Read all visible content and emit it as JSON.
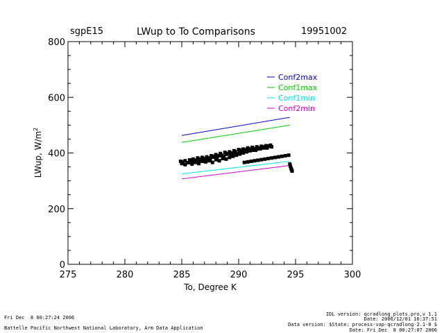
{
  "header": {
    "site": "sgpE15",
    "title": "LWup to To Comparisons",
    "date": "19951002"
  },
  "footer": {
    "left_line1": "Fri Dec  8 00:27:24 2006",
    "left_line2": "Battelle Pacific Northwest National Laboratory, Arm Data Application",
    "right_line1": "IDL version: qcradlong_plots.pro,v 1.1",
    "right_line2": "Date: 2006/12/01 16:37:51",
    "right_line3": "Data version: $State: process-vap-qcradlong-2.1-0 $",
    "right_line4": "Date: Fri Dec  8 00:27:07 2006"
  },
  "chart_data": {
    "type": "scatter",
    "title": "LWup to To Comparisons",
    "xlabel": "To, Degree K",
    "ylabel": "LWup, W/m",
    "ylabel_superscript": "2",
    "xlim": [
      275,
      300
    ],
    "ylim": [
      0,
      800
    ],
    "xticks": [
      275,
      280,
      285,
      290,
      295,
      300
    ],
    "yticks": [
      0,
      200,
      400,
      600,
      800
    ],
    "xtick_labels": [
      "275",
      "280",
      "285",
      "290",
      "295",
      "300"
    ],
    "ytick_labels": [
      "0",
      "200",
      "400",
      "600",
      "800"
    ],
    "legend_position": "top-right",
    "series": [
      {
        "name": "Conf2max",
        "kind": "line",
        "color": "#0000cc",
        "x": [
          285,
          294.5
        ],
        "y": [
          463,
          528
        ]
      },
      {
        "name": "Conf1max",
        "kind": "line",
        "color": "#00cc00",
        "x": [
          285,
          294.5
        ],
        "y": [
          438,
          500
        ]
      },
      {
        "name": "Conf1min",
        "kind": "line",
        "color": "#00e5e5",
        "x": [
          285,
          294.5
        ],
        "y": [
          325,
          370
        ]
      },
      {
        "name": "Conf2min",
        "kind": "line",
        "color": "#cc00cc",
        "x": [
          285,
          294.5
        ],
        "y": [
          307,
          355
        ]
      }
    ],
    "observations": {
      "name": "LWup observations",
      "color": "#000000",
      "x": [
        284.9,
        285.1,
        285.3,
        285.5,
        285.7,
        285.9,
        286.1,
        286.3,
        286.5,
        286.7,
        286.9,
        287.1,
        287.3,
        287.5,
        287.7,
        287.9,
        288.1,
        288.3,
        288.5,
        288.7,
        288.9,
        289.1,
        289.3,
        289.5,
        289.7,
        289.9,
        290.1,
        290.3,
        290.5,
        290.7,
        290.9,
        291.1,
        291.3,
        291.5,
        291.7,
        291.9,
        292.1,
        292.3,
        292.5,
        292.7,
        292.9,
        285.0,
        285.3,
        285.6,
        285.9,
        286.2,
        286.5,
        286.8,
        287.1,
        287.4,
        287.7,
        288.0,
        288.3,
        288.6,
        288.9,
        289.2,
        289.5,
        289.8,
        290.1,
        290.4,
        290.7,
        291.0,
        291.3,
        291.6,
        291.9,
        292.2,
        292.5,
        292.8,
        286.0,
        286.4,
        286.8,
        287.2,
        287.6,
        288.0,
        288.4,
        288.8,
        289.2,
        289.6,
        290.0,
        290.4,
        290.8,
        291.2,
        291.6,
        292.0,
        292.4,
        292.8,
        290.5,
        290.8,
        291.1,
        291.4,
        291.7,
        292.0,
        292.3,
        292.6,
        292.9,
        293.2,
        293.5,
        293.8,
        294.1,
        294.4,
        294.5,
        294.55,
        294.6,
        294.65,
        294.7
      ],
      "y": [
        370,
        368,
        372,
        365,
        375,
        370,
        368,
        374,
        372,
        378,
        380,
        376,
        382,
        378,
        385,
        388,
        384,
        390,
        392,
        388,
        395,
        398,
        394,
        400,
        404,
        398,
        405,
        410,
        406,
        412,
        408,
        414,
        416,
        410,
        418,
        415,
        420,
        422,
        418,
        425,
        422,
        362,
        358,
        365,
        360,
        366,
        362,
        370,
        368,
        372,
        366,
        376,
        372,
        380,
        378,
        384,
        388,
        392,
        396,
        400,
        404,
        408,
        410,
        414,
        416,
        418,
        420,
        424,
        378,
        382,
        384,
        386,
        390,
        394,
        398,
        402,
        404,
        408,
        412,
        414,
        418,
        420,
        422,
        424,
        426,
        428,
        366,
        368,
        370,
        372,
        374,
        376,
        378,
        380,
        382,
        384,
        386,
        388,
        390,
        392,
        360,
        352,
        345,
        340,
        335
      ]
    }
  }
}
